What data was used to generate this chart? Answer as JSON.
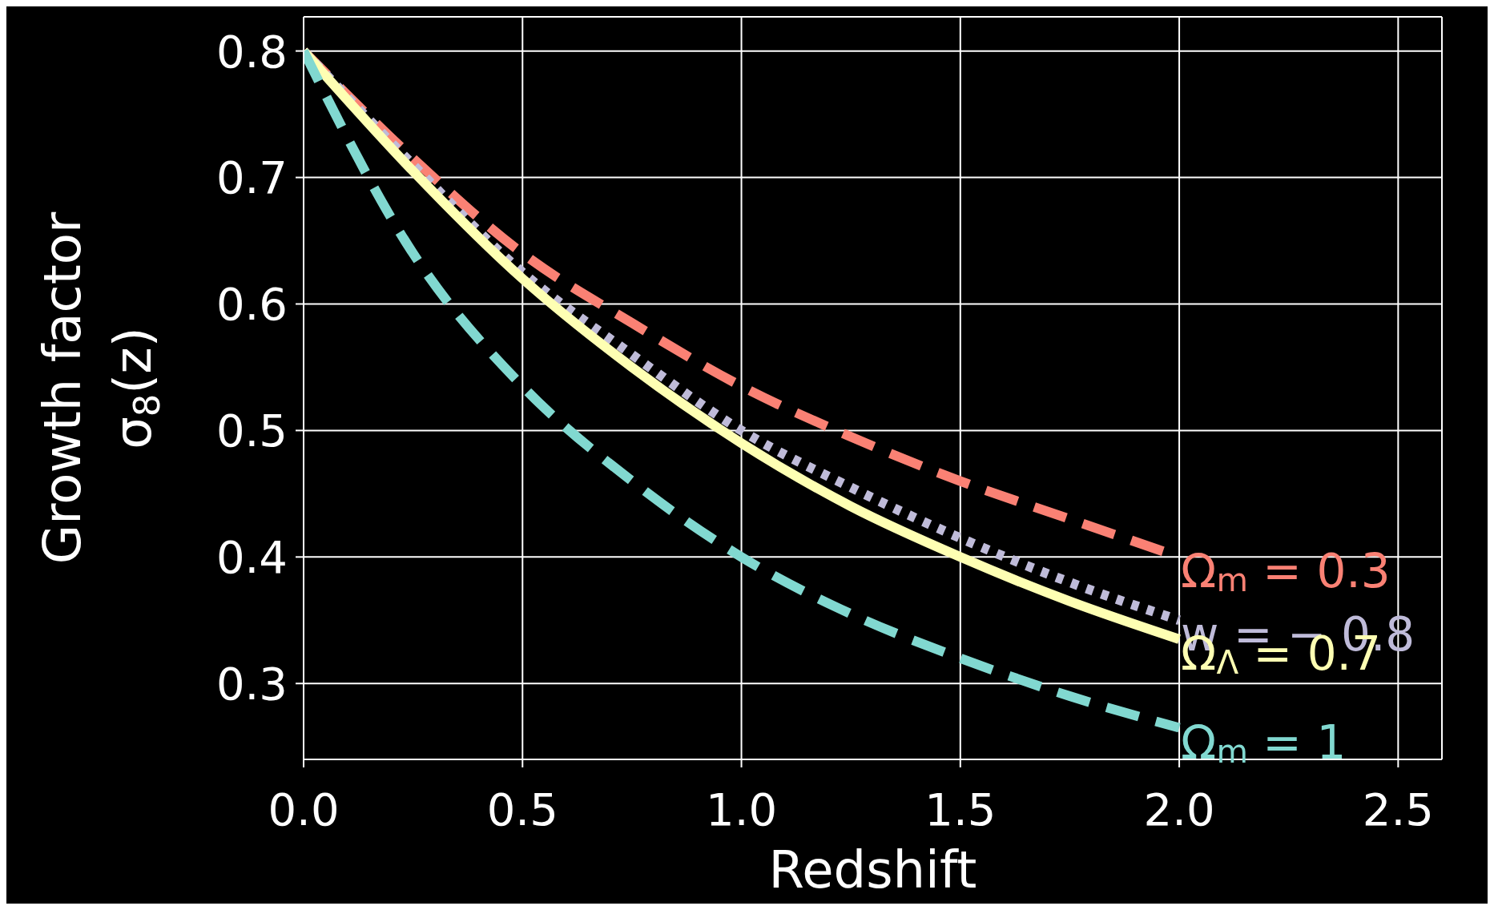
{
  "chart_data": {
    "type": "line",
    "xlabel": "Redshift",
    "ylabel": "Growth factor\nσ$_{8}$(z)",
    "x": [
      0,
      0.25,
      0.5,
      0.75,
      1.0,
      1.25,
      1.5,
      1.75,
      2.0
    ],
    "series": [
      {
        "name": "Ω$_{m}$ = 0.3",
        "color": "#fa8174",
        "line_style": "dashed",
        "values": [
          0.8,
          0.715,
          0.64,
          0.585,
          0.535,
          0.495,
          0.46,
          0.43,
          0.4
        ]
      },
      {
        "name": "w = − 0.8",
        "color": "#bfbbd9",
        "line_style": "dotted",
        "values": [
          0.8,
          0.71,
          0.625,
          0.56,
          0.5,
          0.455,
          0.415,
          0.38,
          0.35
        ]
      },
      {
        "name": "Ω$_{Λ}$ = 0.7",
        "color": "#feffb3",
        "line_style": "solid",
        "values": [
          0.8,
          0.705,
          0.62,
          0.55,
          0.49,
          0.44,
          0.4,
          0.365,
          0.335
        ]
      },
      {
        "name": "Ω$_{m}$ = 1",
        "color": "#81d8d0",
        "line_style": "dashed",
        "values": [
          0.8,
          0.64,
          0.535,
          0.46,
          0.4,
          0.355,
          0.32,
          0.29,
          0.265
        ]
      }
    ],
    "xlim": [
      0,
      2.6
    ],
    "xticks": [
      {
        "value": 0,
        "label": "0.0"
      },
      0.5,
      {
        "value": 1,
        "label": "1.0"
      },
      1.5,
      {
        "value": 2,
        "label": "2.0"
      },
      2.5
    ],
    "ylim": [
      0.24,
      0.827
    ],
    "yticks": [
      0.3,
      0.4,
      0.5,
      0.6,
      0.7,
      0.8
    ],
    "grid": true,
    "marker": "none"
  }
}
